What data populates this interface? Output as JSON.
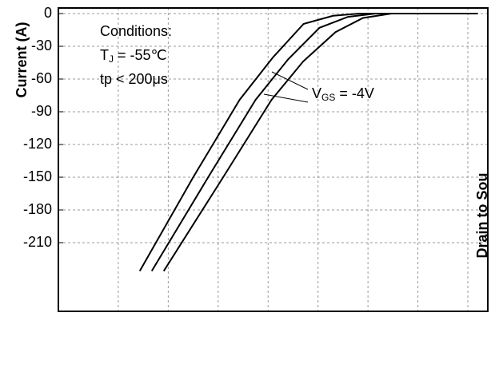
{
  "chart_data": {
    "type": "line",
    "y_label": "Current (A)",
    "right_label": "Drain to Sou",
    "annotations": {
      "conditions": "Conditions:",
      "tj_main": "T",
      "tj_sub": "J",
      "tj_rest": " = -55℃",
      "tp": "tp < 200μs",
      "vgs_main": "V",
      "vgs_sub": "GS",
      "vgs_rest": " = -4V"
    },
    "xlim": [
      -1.2,
      7.4
    ],
    "xticks": [
      0,
      1,
      2,
      3,
      4,
      5,
      6,
      7
    ],
    "ylim": [
      -240,
      0
    ],
    "yticks": [
      0,
      -30,
      -60,
      -90,
      -120,
      -150,
      -180,
      -210
    ],
    "grid": true,
    "series": [
      {
        "color": "#000000",
        "x": [
          0.43,
          1.5,
          2.43,
          3.1,
          3.71,
          4.3,
          4.83,
          7.2
        ],
        "values": [
          -236,
          -150,
          -79,
          -40,
          -9.5,
          -2,
          0,
          0
        ]
      },
      {
        "color": "#000000",
        "x": [
          0.67,
          1.8,
          2.75,
          3.4,
          4.03,
          4.6,
          5.15,
          7.2
        ],
        "values": [
          -236,
          -150,
          -79,
          -42,
          -13,
          -3,
          0,
          0
        ]
      },
      {
        "color": "#000000",
        "x": [
          0.91,
          2.1,
          3.07,
          3.7,
          4.35,
          4.9,
          5.47,
          7.2
        ],
        "values": [
          -236,
          -150,
          -79,
          -44,
          -17,
          -4,
          0,
          0
        ]
      }
    ]
  }
}
